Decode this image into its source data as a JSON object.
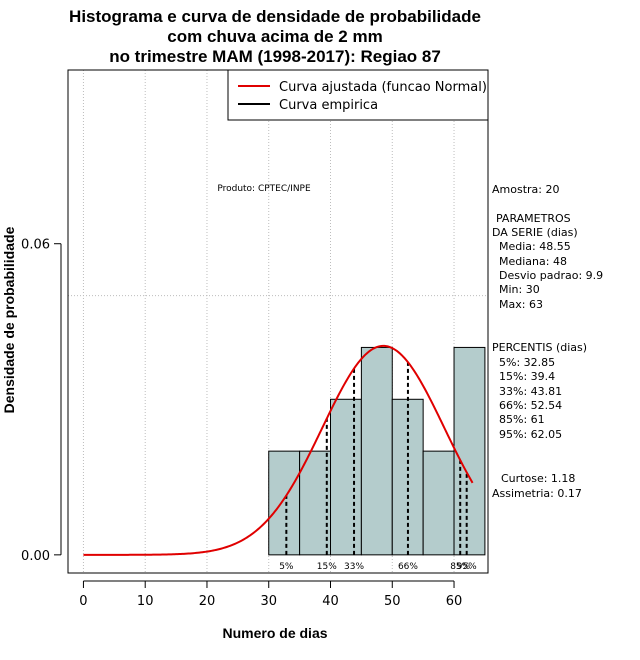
{
  "chart_data": {
    "type": "bar",
    "title_lines": [
      "Histograma e curva de densidade de probabilidade",
      "com chuva acima de 2 mm",
      "no trimestre MAM (1998-2017): Regiao 87"
    ],
    "xlabel": "Numero de dias",
    "ylabel": "Densidade de probabilidade",
    "xlim": [
      -2.5,
      65.5
    ],
    "ylim": [
      -0.0035,
      0.0935
    ],
    "x_ticks": [
      0,
      10,
      20,
      30,
      40,
      50,
      60
    ],
    "y_ticks": [
      {
        "value": 0.0,
        "label": "0.00"
      },
      {
        "value": 0.06,
        "label": "0.06"
      }
    ],
    "grid": true,
    "hgrid_values": [
      0.05
    ],
    "bins": [
      {
        "start": 30,
        "end": 35,
        "density": 0.02
      },
      {
        "start": 35,
        "end": 40,
        "density": 0.02
      },
      {
        "start": 40,
        "end": 45,
        "density": 0.03
      },
      {
        "start": 45,
        "end": 50,
        "density": 0.04
      },
      {
        "start": 50,
        "end": 55,
        "density": 0.03
      },
      {
        "start": 55,
        "end": 60,
        "density": 0.02
      },
      {
        "start": 60,
        "end": 65,
        "density": 0.04
      }
    ],
    "fitted_curve": {
      "name": "Curva ajustada (funcao Normal)",
      "distribution": "normal",
      "mean": 48.55,
      "sd": 9.9,
      "x_range": [
        0,
        63
      ],
      "color": "#e00000"
    },
    "empirical_curve": {
      "name": "Curva empirica",
      "color": "#000000"
    },
    "legend": [
      {
        "label": "Curva ajustada (funcao Normal)",
        "color": "#e00000"
      },
      {
        "label": "Curva empirica",
        "color": "#000000"
      }
    ],
    "legend_position": "top-right",
    "bar_color": "#b4cccc",
    "percentiles": [
      {
        "label": "5%",
        "value": 32.85
      },
      {
        "label": "15%",
        "value": 39.4
      },
      {
        "label": "33%",
        "value": 43.81
      },
      {
        "label": "66%",
        "value": 52.54
      },
      {
        "label": "85%",
        "value": 61
      },
      {
        "label": "95%",
        "value": 62.05
      }
    ],
    "annotation": "Produto: CPTEC/INPE"
  },
  "stats_panel": {
    "amostra": "Amostra: 20",
    "parametros_title_1": "PARAMETROS",
    "parametros_title_2": "DA SERIE (dias)",
    "media": "Media: 48.55",
    "mediana": "Mediana: 48",
    "desvio": "Desvio padrao: 9.9",
    "min": "Min: 30",
    "max": "Max: 63",
    "percentis_title": "PERCENTIS (dias)",
    "p5": "5%: 32.85",
    "p15": "15%: 39.4",
    "p33": "33%: 43.81",
    "p66": "66%: 52.54",
    "p85": "85%: 61",
    "p95": "95%: 62.05",
    "curtose": "Curtose: 1.18",
    "assimetria": "Assimetria: 0.17"
  }
}
